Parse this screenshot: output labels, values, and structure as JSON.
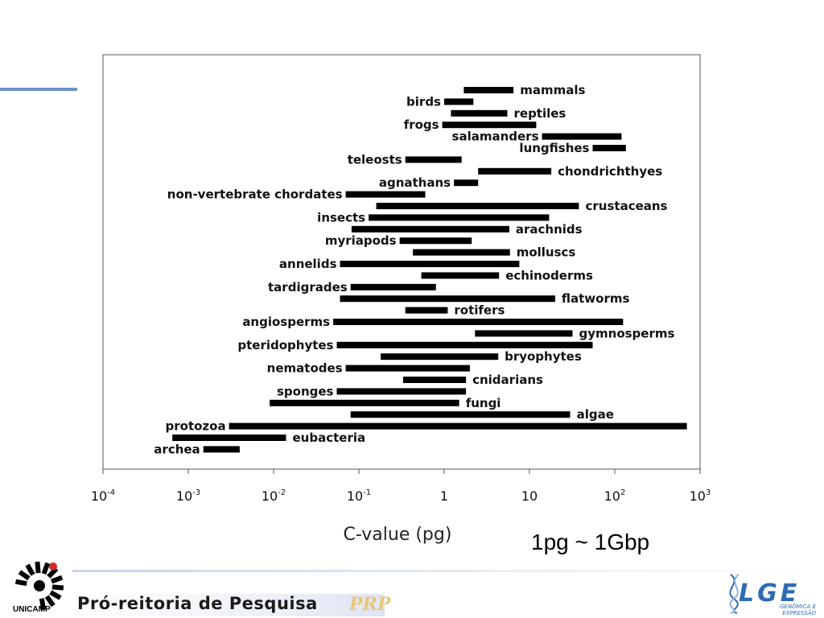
{
  "chart_data": {
    "type": "bar",
    "orientation": "horizontal-range",
    "xscale": "log",
    "xlim": [
      0.0001,
      1000
    ],
    "xlabel": "C-value (pg)",
    "xticks": [
      {
        "value": 0.0001,
        "base": "10",
        "exp": "-4"
      },
      {
        "value": 0.001,
        "base": "10",
        "exp": "-3"
      },
      {
        "value": 0.01,
        "base": "10",
        "exp": "-2"
      },
      {
        "value": 0.1,
        "base": "10",
        "exp": "-1"
      },
      {
        "value": 1,
        "base": "1",
        "exp": ""
      },
      {
        "value": 10,
        "base": "10",
        "exp": ""
      },
      {
        "value": 100,
        "base": "10",
        "exp": "2"
      },
      {
        "value": 1000,
        "base": "10",
        "exp": "3"
      }
    ],
    "bar_color": "#000000",
    "series": [
      {
        "name": "mammals",
        "min": 1.7,
        "max": 6.5,
        "label_side": "right"
      },
      {
        "name": "birds",
        "min": 1.0,
        "max": 2.2,
        "label_side": "left"
      },
      {
        "name": "reptiles",
        "min": 1.2,
        "max": 5.5,
        "label_side": "right"
      },
      {
        "name": "frogs",
        "min": 0.95,
        "max": 12,
        "label_side": "left"
      },
      {
        "name": "salamanders",
        "min": 14,
        "max": 120,
        "label_side": "left"
      },
      {
        "name": "lungfishes",
        "min": 55,
        "max": 135,
        "label_side": "left"
      },
      {
        "name": "teleosts",
        "min": 0.35,
        "max": 1.6,
        "label_side": "left"
      },
      {
        "name": "chondrichthyes",
        "min": 2.5,
        "max": 18,
        "label_side": "right"
      },
      {
        "name": "agnathans",
        "min": 1.3,
        "max": 2.5,
        "label_side": "left"
      },
      {
        "name": "non-vertebrate chordates",
        "min": 0.07,
        "max": 0.6,
        "label_side": "left"
      },
      {
        "name": "crustaceans",
        "min": 0.16,
        "max": 38,
        "label_side": "right"
      },
      {
        "name": "insects",
        "min": 0.13,
        "max": 17,
        "label_side": "left"
      },
      {
        "name": "arachnids",
        "min": 0.082,
        "max": 5.8,
        "label_side": "right"
      },
      {
        "name": "myriapods",
        "min": 0.3,
        "max": 2.1,
        "label_side": "left"
      },
      {
        "name": "molluscs",
        "min": 0.43,
        "max": 5.9,
        "label_side": "right"
      },
      {
        "name": "annelids",
        "min": 0.06,
        "max": 7.6,
        "label_side": "left"
      },
      {
        "name": "echinoderms",
        "min": 0.54,
        "max": 4.4,
        "label_side": "right"
      },
      {
        "name": "tardigrades",
        "min": 0.08,
        "max": 0.8,
        "label_side": "left"
      },
      {
        "name": "flatworms",
        "min": 0.06,
        "max": 20,
        "label_side": "right"
      },
      {
        "name": "rotifers",
        "min": 0.35,
        "max": 1.1,
        "label_side": "right"
      },
      {
        "name": "angiosperms",
        "min": 0.05,
        "max": 125,
        "label_side": "left"
      },
      {
        "name": "gymnosperms",
        "min": 2.3,
        "max": 32,
        "label_side": "right"
      },
      {
        "name": "pteridophytes",
        "min": 0.055,
        "max": 55,
        "label_side": "left"
      },
      {
        "name": "bryophytes",
        "min": 0.18,
        "max": 4.3,
        "label_side": "right"
      },
      {
        "name": "nematodes",
        "min": 0.07,
        "max": 2.0,
        "label_side": "left"
      },
      {
        "name": "cnidarians",
        "min": 0.33,
        "max": 1.8,
        "label_side": "right"
      },
      {
        "name": "sponges",
        "min": 0.055,
        "max": 1.8,
        "label_side": "left"
      },
      {
        "name": "fungi",
        "min": 0.009,
        "max": 1.5,
        "label_side": "right"
      },
      {
        "name": "algae",
        "min": 0.08,
        "max": 30,
        "label_side": "right"
      },
      {
        "name": "protozoa",
        "min": 0.003,
        "max": 700,
        "label_side": "left"
      },
      {
        "name": "eubacteria",
        "min": 0.00065,
        "max": 0.014,
        "label_side": "right"
      },
      {
        "name": "archea",
        "min": 0.0015,
        "max": 0.004,
        "label_side": "left"
      }
    ]
  },
  "note": "1pg ~ 1Gbp",
  "footer": {
    "university": "UNICAMP",
    "department": "Pró-reitoria de Pesquisa",
    "department_mark": "PRP",
    "lab_logo": "LGE",
    "lab_subtitle_1": "GENÔMICA E",
    "lab_subtitle_2": "EXPRESSÃO"
  },
  "colors": {
    "accent_line": "#6d90cc",
    "lab_blue": "#2d6bb5"
  },
  "icons": [
    "unicamp-logo-icon",
    "dna-helix-icon"
  ]
}
